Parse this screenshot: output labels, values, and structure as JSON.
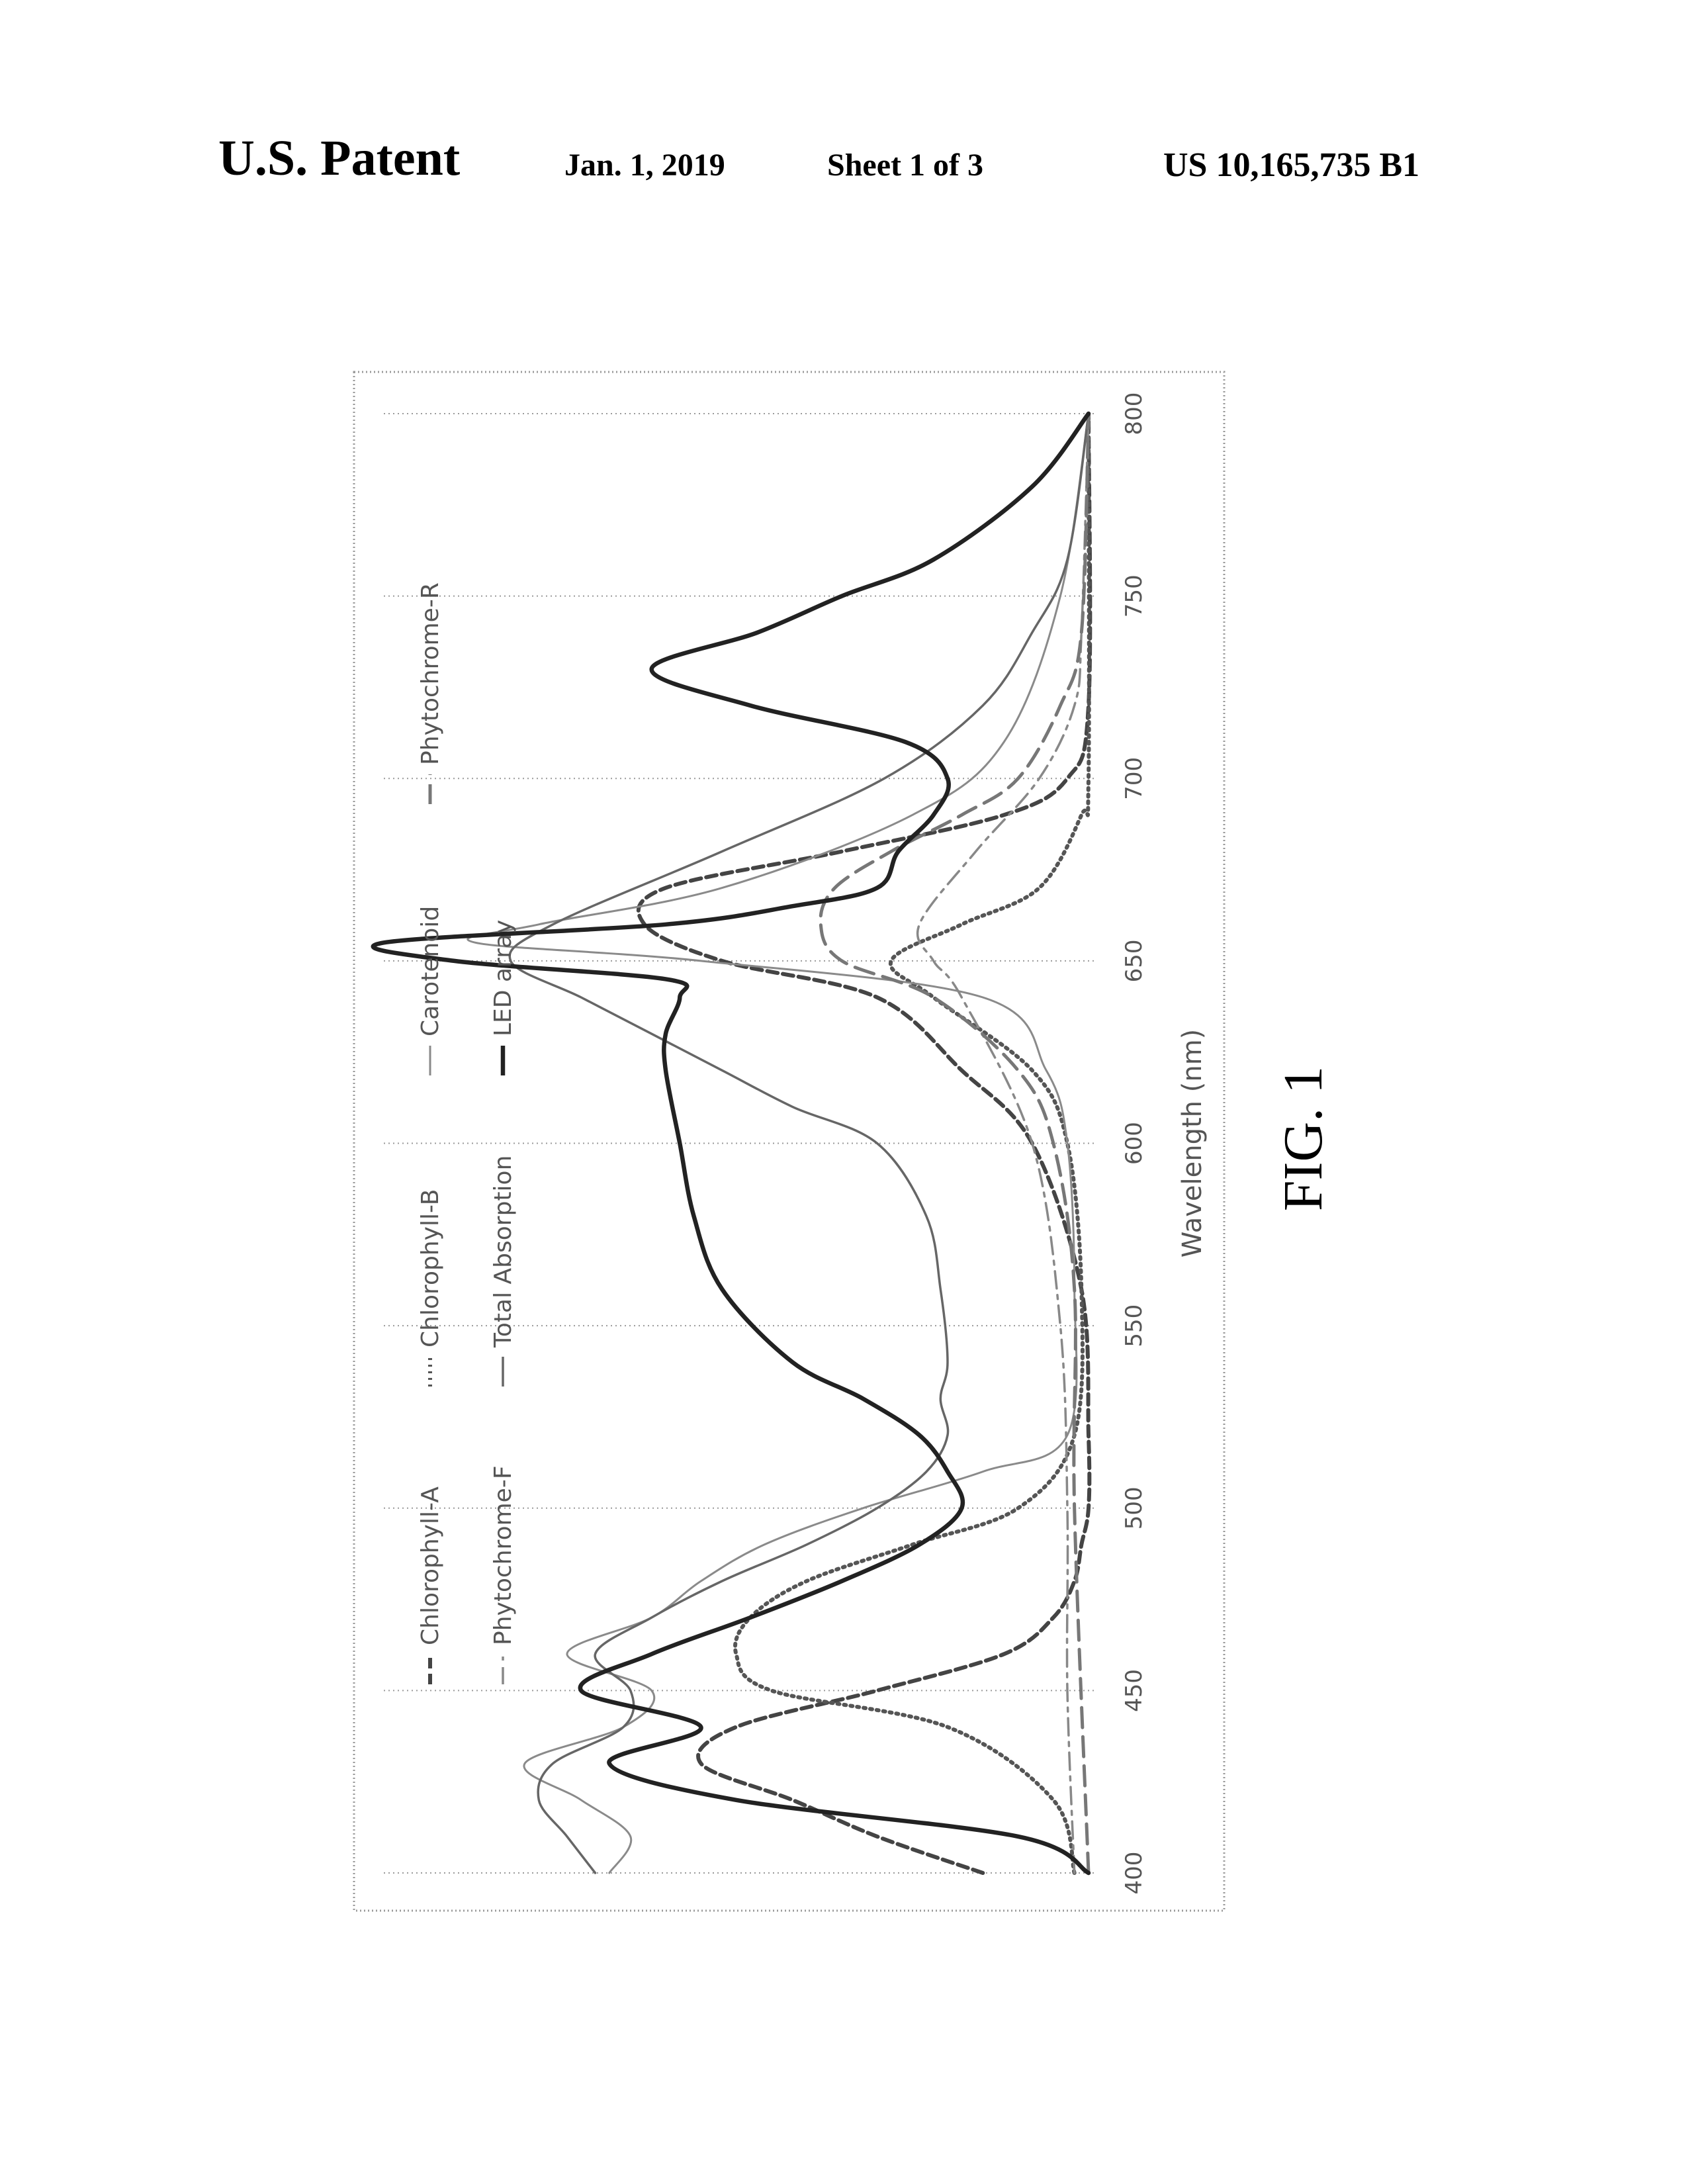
{
  "header": {
    "title": "U.S. Patent",
    "date": "Jan. 1, 2019",
    "sheet": "Sheet 1 of 3",
    "patent_number": "US 10,165,735 B1"
  },
  "figure": {
    "caption": "FIG. 1"
  },
  "chart_data": {
    "type": "line",
    "title": "",
    "xlabel": "Wavelength (nm)",
    "ylabel": "",
    "xlim": [
      400,
      800
    ],
    "ylim": [
      0,
      1
    ],
    "x_ticks": [
      "400",
      "450",
      "500",
      "550",
      "600",
      "650",
      "700",
      "750",
      "800"
    ],
    "grid": true,
    "legend_position": "top",
    "orientation": "rotated 90° counter-clockwise on page",
    "series": [
      {
        "name": "Chlorophyll-A",
        "style": "dashed-bold",
        "color": "#444444",
        "x": [
          400,
          410,
          420,
          430,
          440,
          450,
          460,
          470,
          480,
          490,
          500,
          520,
          560,
          600,
          620,
          640,
          650,
          660,
          670,
          680,
          690,
          700,
          720,
          800
        ],
        "y": [
          0.15,
          0.3,
          0.42,
          0.55,
          0.5,
          0.3,
          0.12,
          0.05,
          0.02,
          0.01,
          0.0,
          0.0,
          0.01,
          0.08,
          0.18,
          0.3,
          0.52,
          0.63,
          0.6,
          0.35,
          0.12,
          0.03,
          0.0,
          0.0
        ]
      },
      {
        "name": "Chlorophyll-B",
        "style": "dotted",
        "color": "#555555",
        "x": [
          400,
          420,
          440,
          450,
          460,
          470,
          480,
          490,
          500,
          520,
          560,
          600,
          620,
          640,
          650,
          660,
          670,
          690,
          700,
          800
        ],
        "y": [
          0.02,
          0.05,
          0.2,
          0.45,
          0.5,
          0.48,
          0.4,
          0.25,
          0.1,
          0.02,
          0.01,
          0.03,
          0.08,
          0.22,
          0.28,
          0.18,
          0.07,
          0.01,
          0.0,
          0.0
        ]
      },
      {
        "name": "Carotenoid",
        "style": "solid-thin",
        "color": "#8a8a8a",
        "x": [
          400,
          410,
          420,
          430,
          440,
          450,
          460,
          470,
          480,
          490,
          500,
          510,
          520,
          560,
          600,
          620,
          640,
          650,
          655,
          660,
          670,
          690,
          710,
          750,
          800
        ],
        "y": [
          0.68,
          0.65,
          0.72,
          0.8,
          0.66,
          0.62,
          0.74,
          0.62,
          0.55,
          0.46,
          0.32,
          0.15,
          0.03,
          0.02,
          0.03,
          0.06,
          0.15,
          0.55,
          0.87,
          0.78,
          0.52,
          0.25,
          0.12,
          0.04,
          0.0
        ]
      },
      {
        "name": "Phytochrome-F",
        "style": "dash-dot",
        "color": "#888888",
        "x": [
          400,
          450,
          500,
          550,
          600,
          640,
          650,
          660,
          680,
          700,
          720,
          740,
          800
        ],
        "y": [
          0.02,
          0.03,
          0.03,
          0.04,
          0.08,
          0.18,
          0.22,
          0.24,
          0.16,
          0.07,
          0.02,
          0.01,
          0.0
        ]
      },
      {
        "name": "Total Absorption",
        "style": "solid",
        "color": "#666666",
        "x": [
          400,
          410,
          420,
          430,
          440,
          450,
          460,
          470,
          480,
          490,
          500,
          510,
          520,
          530,
          540,
          560,
          580,
          600,
          610,
          620,
          630,
          640,
          650,
          660,
          680,
          700,
          720,
          740,
          760,
          800
        ],
        "y": [
          0.7,
          0.74,
          0.78,
          0.76,
          0.66,
          0.65,
          0.7,
          0.62,
          0.52,
          0.4,
          0.3,
          0.23,
          0.2,
          0.21,
          0.2,
          0.21,
          0.23,
          0.3,
          0.42,
          0.52,
          0.62,
          0.72,
          0.82,
          0.76,
          0.52,
          0.29,
          0.15,
          0.08,
          0.03,
          0.0
        ]
      },
      {
        "name": "Phytochrome-R",
        "style": "dashed",
        "color": "#777777",
        "x": [
          400,
          500,
          560,
          600,
          620,
          640,
          650,
          660,
          670,
          680,
          690,
          700,
          720,
          740,
          800
        ],
        "y": [
          0.0,
          0.02,
          0.02,
          0.05,
          0.1,
          0.22,
          0.35,
          0.38,
          0.36,
          0.28,
          0.18,
          0.1,
          0.04,
          0.01,
          0.0
        ]
      },
      {
        "name": "LED array",
        "style": "solid-bold",
        "color": "#222222",
        "x": [
          400,
          410,
          420,
          430,
          440,
          450,
          460,
          470,
          480,
          490,
          500,
          510,
          520,
          530,
          540,
          560,
          580,
          600,
          620,
          630,
          640,
          645,
          650,
          655,
          660,
          665,
          670,
          680,
          690,
          700,
          710,
          720,
          730,
          740,
          750,
          760,
          780,
          800
        ],
        "y": [
          0.0,
          0.1,
          0.5,
          0.68,
          0.55,
          0.72,
          0.62,
          0.48,
          0.35,
          0.24,
          0.18,
          0.2,
          0.24,
          0.32,
          0.42,
          0.52,
          0.56,
          0.58,
          0.6,
          0.6,
          0.58,
          0.6,
          0.9,
          1.0,
          0.6,
          0.42,
          0.3,
          0.27,
          0.22,
          0.2,
          0.26,
          0.48,
          0.62,
          0.47,
          0.35,
          0.22,
          0.08,
          0.0
        ]
      }
    ]
  }
}
